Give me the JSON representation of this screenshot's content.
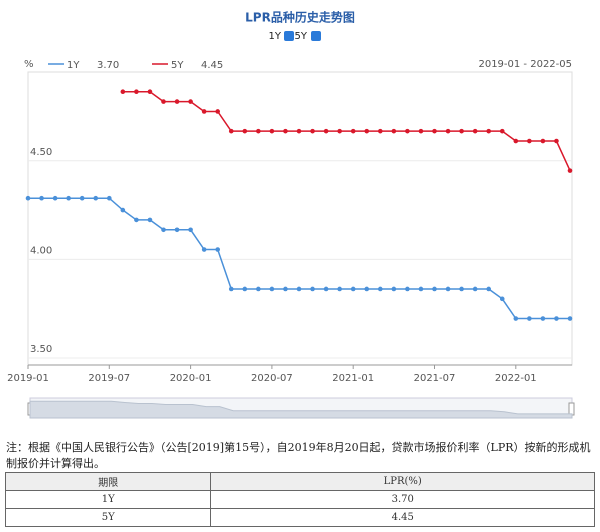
{
  "chart_data": {
    "type": "line",
    "title": "LPR品种历史走势图",
    "y_label": "%",
    "range_label": "2019-01 - 2022-05",
    "categories": [
      "2019-01",
      null,
      null,
      null,
      null,
      null,
      "2019-07",
      null,
      null,
      null,
      null,
      null,
      "2020-01",
      null,
      null,
      null,
      null,
      null,
      "2020-07",
      null,
      null,
      null,
      null,
      null,
      "2021-01",
      null,
      null,
      null,
      null,
      null,
      "2021-07",
      null,
      null,
      null,
      null,
      null,
      "2022-01",
      null,
      null,
      null,
      null
    ],
    "series": [
      {
        "name": "1Y",
        "color": "#4a90d9",
        "latest": "3.70",
        "values": [
          4.31,
          4.31,
          4.31,
          4.31,
          4.31,
          4.31,
          4.31,
          4.25,
          4.2,
          4.2,
          4.15,
          4.15,
          4.15,
          4.05,
          4.05,
          3.85,
          3.85,
          3.85,
          3.85,
          3.85,
          3.85,
          3.85,
          3.85,
          3.85,
          3.85,
          3.85,
          3.85,
          3.85,
          3.85,
          3.85,
          3.85,
          3.85,
          3.85,
          3.85,
          3.85,
          3.8,
          3.7,
          3.7,
          3.7,
          3.7,
          3.7
        ]
      },
      {
        "name": "5Y",
        "color": "#d9182b",
        "latest": "4.45",
        "values": [
          null,
          null,
          null,
          null,
          null,
          null,
          null,
          4.85,
          4.85,
          4.85,
          4.8,
          4.8,
          4.8,
          4.75,
          4.75,
          4.65,
          4.65,
          4.65,
          4.65,
          4.65,
          4.65,
          4.65,
          4.65,
          4.65,
          4.65,
          4.65,
          4.65,
          4.65,
          4.65,
          4.65,
          4.65,
          4.65,
          4.65,
          4.65,
          4.65,
          4.65,
          4.6,
          4.6,
          4.6,
          4.6,
          4.45
        ]
      }
    ],
    "ylim": [
      3.5,
      4.95
    ],
    "yticks": [
      {
        "value": 3.5,
        "label": "3.50"
      },
      {
        "value": 4.0,
        "label": "4.00"
      },
      {
        "value": 4.5,
        "label": "4.50"
      }
    ],
    "grid": true
  },
  "note": "注：根据《中国人民银行公告》（公告[2019]第15号），自2019年8月20日起，贷款市场报价利率（LPR）按新的形成机制报价并计算得出。",
  "table": {
    "header": [
      "期限",
      "LPR(%)"
    ],
    "rows": [
      [
        "1Y",
        "3.70"
      ],
      [
        "5Y",
        "4.45"
      ]
    ]
  }
}
